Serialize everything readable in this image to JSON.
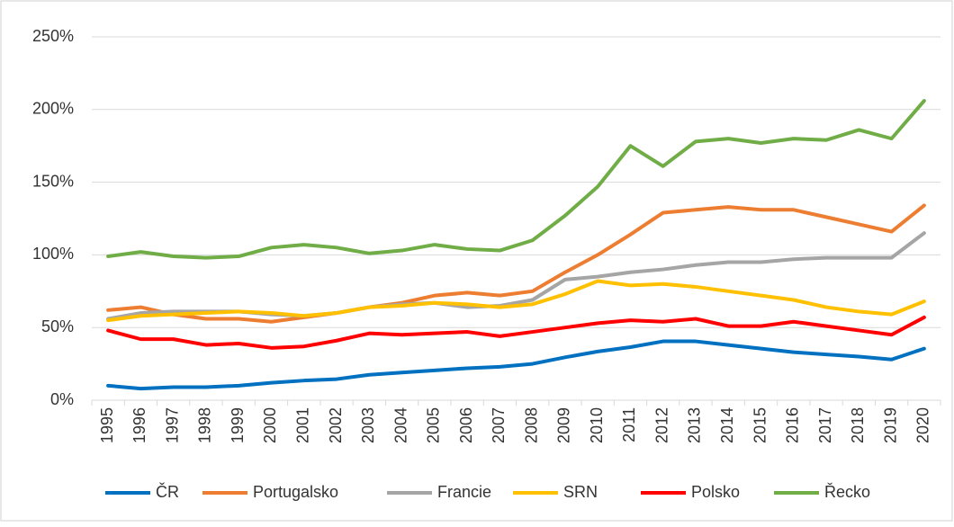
{
  "chart_data": {
    "type": "line",
    "categories": [
      "1995",
      "1996",
      "1997",
      "1998",
      "1999",
      "2000",
      "2001",
      "2002",
      "2003",
      "2004",
      "2005",
      "2006",
      "2007",
      "2008",
      "2009",
      "2010",
      "2011",
      "2012",
      "2013",
      "2014",
      "2015",
      "2016",
      "2017",
      "2018",
      "2019",
      "2020"
    ],
    "series": [
      {
        "name": "ČR",
        "color": "#0070c0",
        "values": [
          10,
          8,
          9,
          9,
          10,
          12,
          13.5,
          14.5,
          17.5,
          19,
          20.5,
          22,
          23,
          25,
          29.5,
          33.5,
          36.5,
          40.5,
          40.5,
          38,
          35.5,
          33,
          31.5,
          30,
          28,
          35.5
        ]
      },
      {
        "name": "Portugalsko",
        "color": "#ed7d31",
        "values": [
          62,
          64,
          59,
          56,
          56,
          54,
          57,
          60,
          64,
          67,
          72,
          74,
          72,
          75,
          88,
          100,
          114,
          129,
          131,
          133,
          131,
          131,
          126,
          121,
          116,
          134
        ]
      },
      {
        "name": "Francie",
        "color": "#a5a5a5",
        "values": [
          56,
          60,
          61,
          61,
          61,
          59,
          58,
          60,
          64,
          66,
          67,
          64,
          65,
          69,
          83,
          85,
          88,
          90,
          93,
          95,
          95,
          97,
          98,
          98,
          98,
          115
        ]
      },
      {
        "name": "SRN",
        "color": "#ffc000",
        "values": [
          55,
          58,
          59,
          60,
          61,
          60,
          58,
          60,
          64,
          65,
          67,
          66,
          64,
          66,
          73,
          82,
          79,
          80,
          78,
          75,
          72,
          69,
          64,
          61,
          59,
          68
        ]
      },
      {
        "name": "Polsko",
        "color": "#ff0000",
        "values": [
          48,
          42,
          42,
          38,
          39,
          36,
          37,
          41,
          46,
          45,
          46,
          47,
          44,
          47,
          50,
          53,
          55,
          54,
          56,
          51,
          51,
          54,
          51,
          48,
          45,
          57
        ]
      },
      {
        "name": "Řecko",
        "color": "#70ad47",
        "values": [
          99,
          102,
          99,
          98,
          99,
          105,
          107,
          105,
          101,
          103,
          107,
          104,
          103,
          110,
          127,
          147,
          175,
          161,
          178,
          180,
          177,
          180,
          179,
          186,
          180,
          206
        ]
      }
    ],
    "ylim": [
      0,
      250
    ],
    "yticks": [
      {
        "value": 0,
        "label": "0%"
      },
      {
        "value": 50,
        "label": "50%"
      },
      {
        "value": 100,
        "label": "100%"
      },
      {
        "value": 150,
        "label": "150%"
      },
      {
        "value": 200,
        "label": "200%"
      },
      {
        "value": 250,
        "label": "250%"
      }
    ],
    "grid": true,
    "legend": "bottom"
  }
}
